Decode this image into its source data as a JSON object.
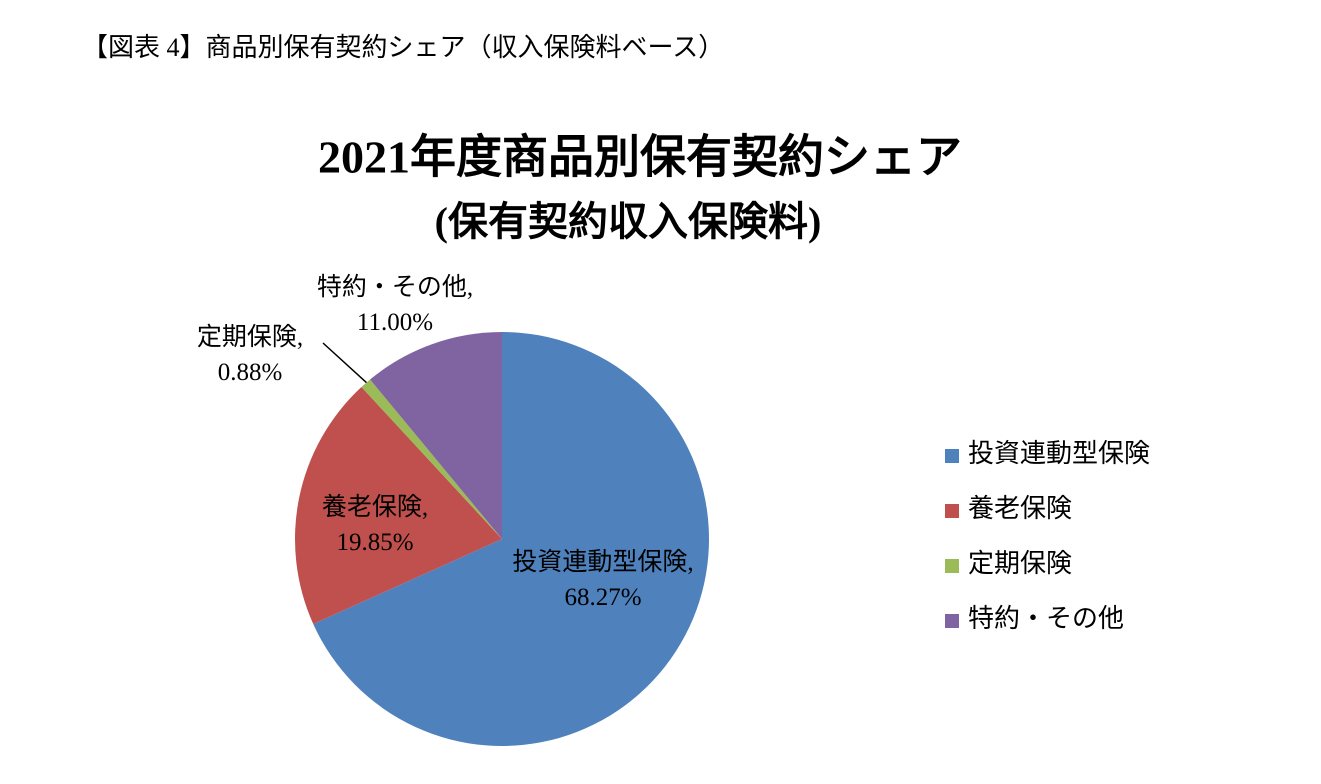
{
  "header": "【図表 4】商品別保有契約シェア（収入保険料ベース）",
  "chart_data": {
    "type": "pie",
    "title": "2021年度商品別保有契約シェア",
    "subtitle": "(保有契約収入保険料)",
    "categories": [
      "投資連動型保険",
      "養老保険",
      "定期保険",
      "特約・その他"
    ],
    "values": [
      68.27,
      19.85,
      0.88,
      11.0
    ],
    "value_labels": [
      "投資連動型保険, 68.27%",
      "養老保険, 19.85%",
      "定期保険, 0.88%",
      "特約・その他, 11.00%"
    ],
    "colors": [
      "#4f81bd",
      "#c0504d",
      "#9bbb59",
      "#8064a2"
    ],
    "legend": "right"
  }
}
